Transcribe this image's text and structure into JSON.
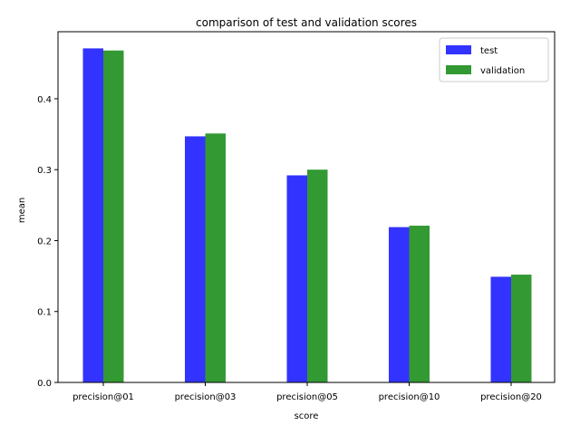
{
  "chart_data": {
    "type": "bar",
    "title": "comparison of test and validation scores",
    "xlabel": "score",
    "ylabel": "mean",
    "categories": [
      "precision@01",
      "precision@03",
      "precision@05",
      "precision@10",
      "precision@20"
    ],
    "series": [
      {
        "name": "test",
        "color": "#3333ff",
        "values": [
          0.471,
          0.347,
          0.292,
          0.219,
          0.149
        ]
      },
      {
        "name": "validation",
        "color": "#339933",
        "values": [
          0.468,
          0.351,
          0.3,
          0.221,
          0.152
        ]
      }
    ],
    "yticks": [
      "0.0",
      "0.1",
      "0.2",
      "0.3",
      "0.4"
    ],
    "ylim": [
      0,
      0.4945
    ],
    "grid": false,
    "legend_position": "top-right"
  }
}
